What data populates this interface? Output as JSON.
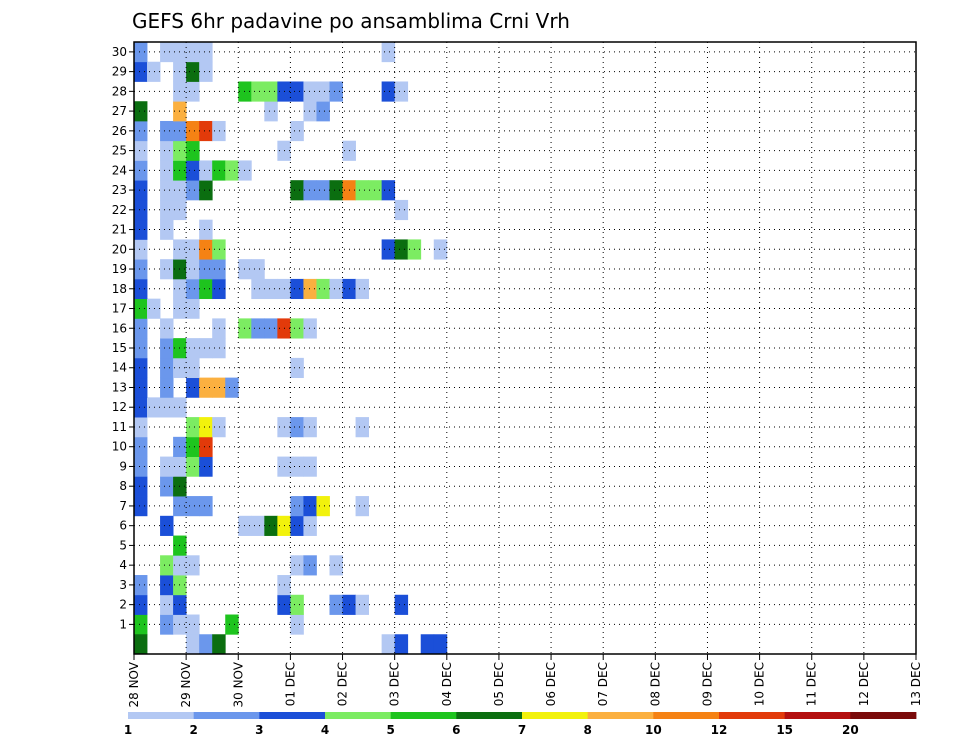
{
  "chart_data": {
    "type": "heatmap",
    "title": "GEFS 6hr padavine po ansamblima Crni Vrh",
    "ylim": [
      0,
      30
    ],
    "y_ticks": [
      1,
      2,
      3,
      4,
      5,
      6,
      7,
      8,
      9,
      10,
      11,
      12,
      13,
      14,
      15,
      16,
      17,
      18,
      19,
      20,
      21,
      22,
      23,
      24,
      25,
      26,
      27,
      28,
      29,
      30
    ],
    "x_ticks": [
      "28 NOV",
      "29 NOV",
      "30 NOV",
      "01 DEC",
      "02 DEC",
      "03 DEC",
      "04 DEC",
      "05 DEC",
      "06 DEC",
      "07 DEC",
      "08 DEC",
      "09 DEC",
      "10 DEC",
      "11 DEC",
      "12 DEC",
      "13 DEC"
    ],
    "x_range_days": [
      0,
      15
    ],
    "steps_per_day": 4,
    "colorbar": {
      "labels": [
        "1",
        "2",
        "3",
        "4",
        "5",
        "6",
        "7",
        "8",
        "10",
        "12",
        "15",
        "20"
      ],
      "colors": [
        "#b3c8f3",
        "#6b97ec",
        "#1b4fd8",
        "#7cec62",
        "#1ec41e",
        "#0b6e10",
        "#f2f20c",
        "#fbb040",
        "#f58214",
        "#e23a0a",
        "#b40f0f",
        "#7a0a0a"
      ]
    },
    "cells": [
      [
        1,
        0,
        4
      ],
      [
        1,
        2,
        1
      ],
      [
        1,
        3,
        0
      ],
      [
        1,
        4,
        0
      ],
      [
        1,
        7,
        4
      ],
      [
        1,
        12,
        0
      ],
      [
        2,
        0,
        2
      ],
      [
        2,
        2,
        0
      ],
      [
        2,
        3,
        2
      ],
      [
        2,
        11,
        2
      ],
      [
        2,
        12,
        3
      ],
      [
        2,
        15,
        1
      ],
      [
        2,
        16,
        2
      ],
      [
        2,
        17,
        0
      ],
      [
        2,
        20,
        2
      ],
      [
        3,
        0,
        1
      ],
      [
        3,
        2,
        2
      ],
      [
        3,
        3,
        3
      ],
      [
        3,
        11,
        0
      ],
      [
        4,
        2,
        3
      ],
      [
        4,
        3,
        0
      ],
      [
        4,
        4,
        0
      ],
      [
        4,
        12,
        0
      ],
      [
        4,
        13,
        1
      ],
      [
        4,
        15,
        0
      ],
      [
        5,
        3,
        4
      ],
      [
        6,
        2,
        2
      ],
      [
        6,
        8,
        0
      ],
      [
        6,
        9,
        0
      ],
      [
        6,
        10,
        5
      ],
      [
        6,
        11,
        6
      ],
      [
        6,
        12,
        2
      ],
      [
        6,
        13,
        0
      ],
      [
        7,
        0,
        2
      ],
      [
        7,
        3,
        1
      ],
      [
        7,
        4,
        1
      ],
      [
        7,
        5,
        1
      ],
      [
        7,
        12,
        1
      ],
      [
        7,
        13,
        2
      ],
      [
        7,
        14,
        6
      ],
      [
        7,
        17,
        0
      ],
      [
        8,
        0,
        2
      ],
      [
        8,
        2,
        1
      ],
      [
        8,
        3,
        5
      ],
      [
        9,
        0,
        1
      ],
      [
        9,
        2,
        0
      ],
      [
        9,
        3,
        0
      ],
      [
        9,
        4,
        3
      ],
      [
        9,
        5,
        2
      ],
      [
        9,
        11,
        0
      ],
      [
        9,
        12,
        0
      ],
      [
        9,
        13,
        0
      ],
      [
        10,
        0,
        1
      ],
      [
        10,
        3,
        1
      ],
      [
        10,
        4,
        4
      ],
      [
        10,
        5,
        9
      ],
      [
        11,
        0,
        0
      ],
      [
        11,
        4,
        3
      ],
      [
        11,
        5,
        6
      ],
      [
        11,
        6,
        0
      ],
      [
        11,
        11,
        0
      ],
      [
        11,
        12,
        1
      ],
      [
        11,
        13,
        0
      ],
      [
        11,
        17,
        0
      ],
      [
        12,
        0,
        2
      ],
      [
        12,
        1,
        0
      ],
      [
        12,
        2,
        0
      ],
      [
        12,
        3,
        0
      ],
      [
        13,
        0,
        2
      ],
      [
        13,
        2,
        1
      ],
      [
        13,
        4,
        2
      ],
      [
        13,
        5,
        7
      ],
      [
        13,
        6,
        7
      ],
      [
        13,
        7,
        1
      ],
      [
        14,
        0,
        2
      ],
      [
        14,
        2,
        1
      ],
      [
        14,
        3,
        0
      ],
      [
        14,
        4,
        0
      ],
      [
        14,
        12,
        0
      ],
      [
        15,
        0,
        1
      ],
      [
        15,
        2,
        1
      ],
      [
        15,
        3,
        4
      ],
      [
        15,
        4,
        0
      ],
      [
        15,
        5,
        0
      ],
      [
        15,
        6,
        0
      ],
      [
        16,
        0,
        1
      ],
      [
        16,
        2,
        0
      ],
      [
        16,
        6,
        0
      ],
      [
        16,
        8,
        3
      ],
      [
        16,
        9,
        1
      ],
      [
        16,
        10,
        1
      ],
      [
        16,
        11,
        9
      ],
      [
        16,
        12,
        3
      ],
      [
        16,
        13,
        0
      ],
      [
        17,
        0,
        4
      ],
      [
        17,
        1,
        0
      ],
      [
        17,
        3,
        0
      ],
      [
        17,
        4,
        0
      ],
      [
        18,
        0,
        2
      ],
      [
        18,
        3,
        0
      ],
      [
        18,
        4,
        1
      ],
      [
        18,
        5,
        4
      ],
      [
        18,
        6,
        2
      ],
      [
        18,
        9,
        0
      ],
      [
        18,
        10,
        0
      ],
      [
        18,
        11,
        0
      ],
      [
        18,
        12,
        2
      ],
      [
        18,
        13,
        7
      ],
      [
        18,
        14,
        3
      ],
      [
        18,
        15,
        0
      ],
      [
        18,
        16,
        2
      ],
      [
        18,
        17,
        0
      ],
      [
        19,
        0,
        1
      ],
      [
        19,
        2,
        0
      ],
      [
        19,
        3,
        5
      ],
      [
        19,
        4,
        0
      ],
      [
        19,
        5,
        1
      ],
      [
        19,
        6,
        1
      ],
      [
        19,
        8,
        0
      ],
      [
        19,
        9,
        0
      ],
      [
        20,
        0,
        0
      ],
      [
        20,
        3,
        0
      ],
      [
        20,
        4,
        0
      ],
      [
        20,
        5,
        8
      ],
      [
        20,
        6,
        3
      ],
      [
        20,
        19,
        2
      ],
      [
        20,
        20,
        5
      ],
      [
        20,
        21,
        3
      ],
      [
        20,
        23,
        0
      ],
      [
        21,
        0,
        2
      ],
      [
        21,
        2,
        0
      ],
      [
        21,
        5,
        0
      ],
      [
        22,
        0,
        2
      ],
      [
        22,
        2,
        0
      ],
      [
        22,
        3,
        0
      ],
      [
        22,
        20,
        0
      ],
      [
        23,
        0,
        2
      ],
      [
        23,
        2,
        0
      ],
      [
        23,
        3,
        0
      ],
      [
        23,
        4,
        1
      ],
      [
        23,
        5,
        5
      ],
      [
        23,
        12,
        5
      ],
      [
        23,
        13,
        1
      ],
      [
        23,
        14,
        1
      ],
      [
        23,
        15,
        5
      ],
      [
        23,
        16,
        8
      ],
      [
        23,
        17,
        3
      ],
      [
        23,
        18,
        3
      ],
      [
        23,
        19,
        2
      ],
      [
        24,
        0,
        1
      ],
      [
        24,
        2,
        0
      ],
      [
        24,
        3,
        4
      ],
      [
        24,
        4,
        2
      ],
      [
        24,
        5,
        0
      ],
      [
        24,
        6,
        4
      ],
      [
        24,
        7,
        3
      ],
      [
        24,
        8,
        0
      ],
      [
        25,
        0,
        0
      ],
      [
        25,
        2,
        0
      ],
      [
        25,
        3,
        3
      ],
      [
        25,
        4,
        4
      ],
      [
        25,
        11,
        0
      ],
      [
        25,
        16,
        0
      ],
      [
        26,
        0,
        1
      ],
      [
        26,
        2,
        1
      ],
      [
        26,
        3,
        1
      ],
      [
        26,
        4,
        8
      ],
      [
        26,
        5,
        9
      ],
      [
        26,
        6,
        0
      ],
      [
        26,
        12,
        0
      ],
      [
        27,
        0,
        5
      ],
      [
        27,
        3,
        7
      ],
      [
        27,
        10,
        0
      ],
      [
        27,
        13,
        0
      ],
      [
        27,
        14,
        1
      ],
      [
        28,
        3,
        0
      ],
      [
        28,
        4,
        0
      ],
      [
        28,
        8,
        4
      ],
      [
        28,
        9,
        3
      ],
      [
        28,
        10,
        3
      ],
      [
        28,
        11,
        2
      ],
      [
        28,
        12,
        2
      ],
      [
        28,
        13,
        0
      ],
      [
        28,
        14,
        0
      ],
      [
        28,
        15,
        1
      ],
      [
        28,
        19,
        2
      ],
      [
        28,
        20,
        0
      ],
      [
        29,
        0,
        2
      ],
      [
        29,
        1,
        0
      ],
      [
        29,
        3,
        0
      ],
      [
        29,
        4,
        5
      ],
      [
        29,
        5,
        0
      ],
      [
        30,
        0,
        1
      ],
      [
        30,
        2,
        0
      ],
      [
        30,
        3,
        0
      ],
      [
        30,
        4,
        0
      ],
      [
        30,
        5,
        0
      ],
      [
        30,
        19,
        0
      ],
      [
        0,
        0,
        5
      ],
      [
        0,
        4,
        0
      ],
      [
        0,
        5,
        1
      ],
      [
        0,
        6,
        5
      ],
      [
        0,
        19,
        0
      ],
      [
        0,
        20,
        2
      ],
      [
        0,
        22,
        2
      ],
      [
        0,
        23,
        2
      ]
    ]
  }
}
